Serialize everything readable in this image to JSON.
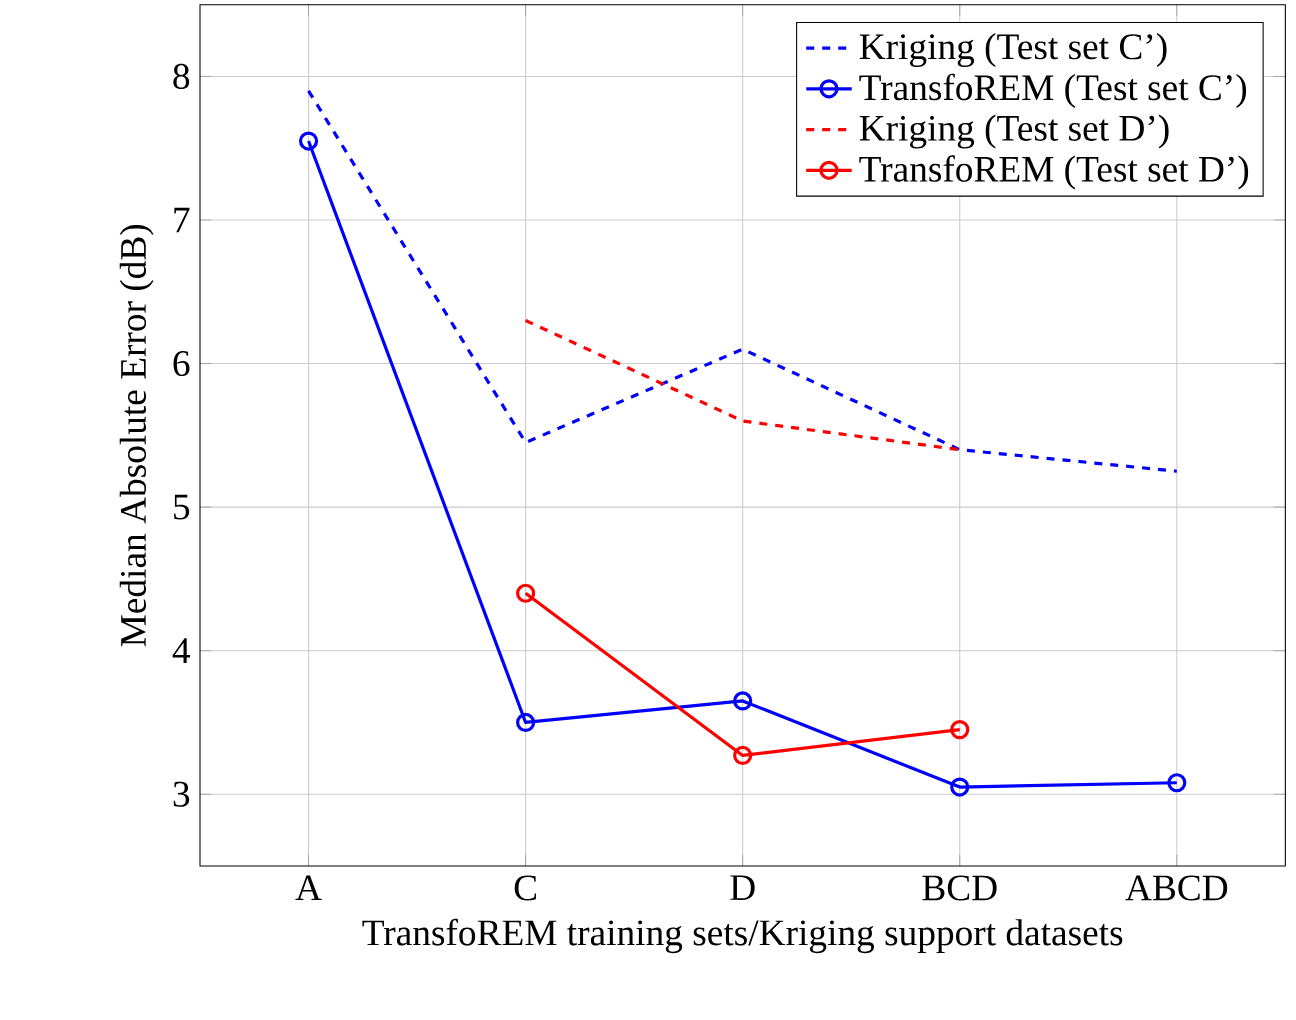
{
  "chart_data": {
    "type": "line",
    "xlabel": "TransfoREM training sets/Kriging support datasets",
    "ylabel": "Median Absolute Error (dB)",
    "categories": [
      "A",
      "C",
      "D",
      "BCD",
      "ABCD"
    ],
    "ylim": [
      2.5,
      8.5
    ],
    "yticks": [
      3,
      4,
      5,
      6,
      7,
      8
    ],
    "grid": true,
    "legend": "top right",
    "series": [
      {
        "name": "Kriging (Test set C’)",
        "color": "#0000ff",
        "line_style": "dashed",
        "marker": "none",
        "values": [
          7.9,
          5.45,
          6.1,
          5.4,
          5.25
        ]
      },
      {
        "name": "TransfoREM (Test set C’)",
        "color": "#0000ff",
        "line_style": "solid",
        "marker": "circle",
        "values": [
          7.55,
          3.5,
          3.65,
          3.05,
          3.08
        ]
      },
      {
        "name": "Kriging (Test set D’)",
        "color": "#ff0000",
        "line_style": "dashed",
        "marker": "none",
        "values": [
          null,
          6.3,
          5.6,
          5.4,
          null
        ]
      },
      {
        "name": "TransfoREM (Test set D’)",
        "color": "#ff0000",
        "line_style": "solid",
        "marker": "circle",
        "values": [
          null,
          4.4,
          3.27,
          3.45,
          null
        ]
      }
    ]
  }
}
